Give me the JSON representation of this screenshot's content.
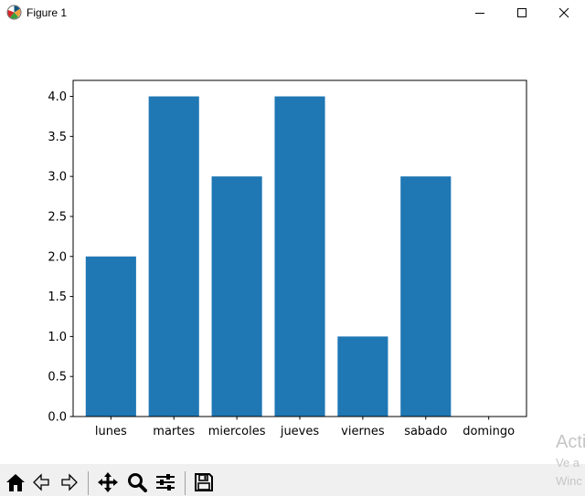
{
  "window": {
    "title": "Figure 1",
    "icon": "matplotlib-icon",
    "controls": [
      "minimize-icon",
      "maximize-icon",
      "close-icon"
    ]
  },
  "chart_data": {
    "type": "bar",
    "categories": [
      "lunes",
      "martes",
      "miercoles",
      "jueves",
      "viernes",
      "sabado",
      "domingo"
    ],
    "values": [
      2,
      4,
      3,
      4,
      1,
      3,
      0
    ],
    "ylim": [
      0,
      4.2
    ],
    "yticks": [
      "0.0",
      "0.5",
      "1.0",
      "1.5",
      "2.0",
      "2.5",
      "3.0",
      "3.5",
      "4.0"
    ],
    "title": "",
    "xlabel": "",
    "ylabel": "",
    "bar_color": "#1f77b4",
    "grid": false
  },
  "toolbar": {
    "tools": [
      "home-icon",
      "back-icon",
      "forward-icon",
      "pan-icon",
      "zoom-icon",
      "configure-subplots-icon",
      "save-icon"
    ]
  },
  "watermark": {
    "line1": "Acti",
    "line2": "Ve a",
    "line3": "Winc"
  }
}
